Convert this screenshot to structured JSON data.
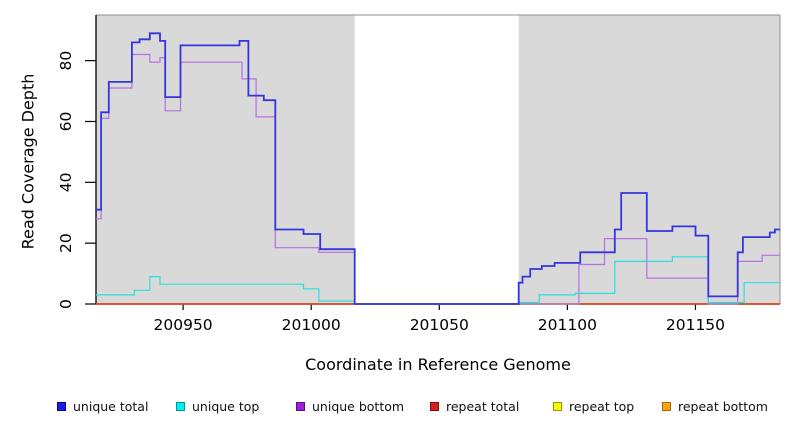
{
  "figure": {
    "xlabel": "Coordinate in Reference Genome",
    "ylabel": "Read Coverage Depth"
  },
  "chart_data": {
    "type": "line",
    "subtype": "step-coverage",
    "title": "",
    "xlabel": "Coordinate in Reference Genome",
    "ylabel": "Read Coverage Depth",
    "xlim": [
      200916,
      201183
    ],
    "ylim": [
      0,
      95
    ],
    "x_ticks": [
      200950,
      201000,
      201050,
      201100,
      201150
    ],
    "y_ticks": [
      0,
      20,
      40,
      60,
      80
    ],
    "grid": false,
    "legend_position": "bottom",
    "plot_background": "#d9d9d9",
    "page_background": "#ffffff",
    "axis_color": "#000000",
    "box_color": "#8f8f8f",
    "uncovered_region": {
      "x_start": 201017,
      "x_end": 201081,
      "color": "#ffffff"
    },
    "series": [
      {
        "name": "unique total",
        "color": "#3535dc",
        "swatch_fill": "#1d1de0",
        "swatch_border": "#0000a8",
        "line_width": 1.8,
        "segments": [
          [
            200916,
            200918,
            31
          ],
          [
            200918,
            200921,
            63
          ],
          [
            200921,
            200930,
            73
          ],
          [
            200930,
            200933,
            86
          ],
          [
            200933,
            200937,
            87
          ],
          [
            200937,
            200941,
            89
          ],
          [
            200941,
            200943,
            86.5
          ],
          [
            200943,
            200949,
            68
          ],
          [
            200949,
            200972,
            85
          ],
          [
            200972,
            200975.5,
            86.5
          ],
          [
            200975.5,
            200981.5,
            68.5
          ],
          [
            200981.5,
            200986,
            67
          ],
          [
            200986,
            200997,
            24.5
          ],
          [
            200997,
            201003.5,
            23
          ],
          [
            201003.5,
            201017,
            18
          ],
          [
            201017,
            201081,
            0
          ],
          [
            201081,
            201082.5,
            7
          ],
          [
            201082.5,
            201085.5,
            9
          ],
          [
            201085.5,
            201090,
            11.5
          ],
          [
            201090,
            201095,
            12.5
          ],
          [
            201095,
            201105,
            13.5
          ],
          [
            201105,
            201118.5,
            17
          ],
          [
            201118.5,
            201121,
            24.5
          ],
          [
            201121,
            201131,
            36.5
          ],
          [
            201131,
            201141,
            24
          ],
          [
            201141,
            201150,
            25.5
          ],
          [
            201150,
            201155,
            22.5
          ],
          [
            201155,
            201166.5,
            2.5
          ],
          [
            201166.5,
            201168.5,
            17
          ],
          [
            201168.5,
            201179,
            22
          ],
          [
            201179,
            201181,
            23.5
          ],
          [
            201181,
            201183,
            24.5
          ]
        ]
      },
      {
        "name": "unique top",
        "color": "#2bdede",
        "swatch_fill": "#00f0f0",
        "swatch_border": "#009696",
        "line_width": 1.2,
        "segments": [
          [
            200916,
            200931,
            3
          ],
          [
            200931,
            200937,
            4.5
          ],
          [
            200937,
            200941,
            9
          ],
          [
            200941,
            200997,
            6.5
          ],
          [
            200997,
            201003,
            5
          ],
          [
            201003,
            201017,
            1
          ],
          [
            201017,
            201081,
            0
          ],
          [
            201081,
            201089,
            0.5
          ],
          [
            201089,
            201103,
            3
          ],
          [
            201103,
            201118.5,
            3.5
          ],
          [
            201118.5,
            201141,
            14
          ],
          [
            201141,
            201155,
            15.5
          ],
          [
            201155,
            201169,
            0.5
          ],
          [
            201169,
            201183,
            7
          ]
        ]
      },
      {
        "name": "unique bottom",
        "color": "#b472e2",
        "swatch_fill": "#9c22d8",
        "swatch_border": "#5c0d8a",
        "line_width": 1.2,
        "segments": [
          [
            200916,
            200918,
            28
          ],
          [
            200918,
            200921,
            61
          ],
          [
            200921,
            200930,
            71
          ],
          [
            200930,
            200937,
            82
          ],
          [
            200937,
            200941,
            79.5
          ],
          [
            200941,
            200943,
            81
          ],
          [
            200943,
            200949,
            63.5
          ],
          [
            200949,
            200973,
            79.5
          ],
          [
            200973,
            200978.5,
            74
          ],
          [
            200978.5,
            200986,
            61.5
          ],
          [
            200986,
            201003,
            18.5
          ],
          [
            201003,
            201017,
            17
          ],
          [
            201017,
            201104.5,
            0
          ],
          [
            201104.5,
            201114.5,
            13
          ],
          [
            201114.5,
            201131,
            21.5
          ],
          [
            201131,
            201155,
            8.5
          ],
          [
            201155,
            201166.5,
            0
          ],
          [
            201166.5,
            201176,
            14
          ],
          [
            201176,
            201183,
            16
          ]
        ]
      },
      {
        "name": "repeat total",
        "color": "#d42222",
        "swatch_fill": "#d42222",
        "swatch_border": "#7a0f0f",
        "line_width": 1.2,
        "segments": [
          [
            200916,
            201183,
            0
          ]
        ]
      },
      {
        "name": "repeat top",
        "color": "#f2f20a",
        "swatch_fill": "#f7f700",
        "swatch_border": "#9a9a00",
        "line_width": 1.2,
        "segments": [
          [
            200916,
            201183,
            0
          ]
        ]
      },
      {
        "name": "repeat bottom",
        "color": "#ff9e1e",
        "swatch_fill": "#ffa312",
        "swatch_border": "#a86a00",
        "line_width": 1.5,
        "segments": [
          [
            200916,
            201183,
            0
          ]
        ]
      }
    ]
  }
}
